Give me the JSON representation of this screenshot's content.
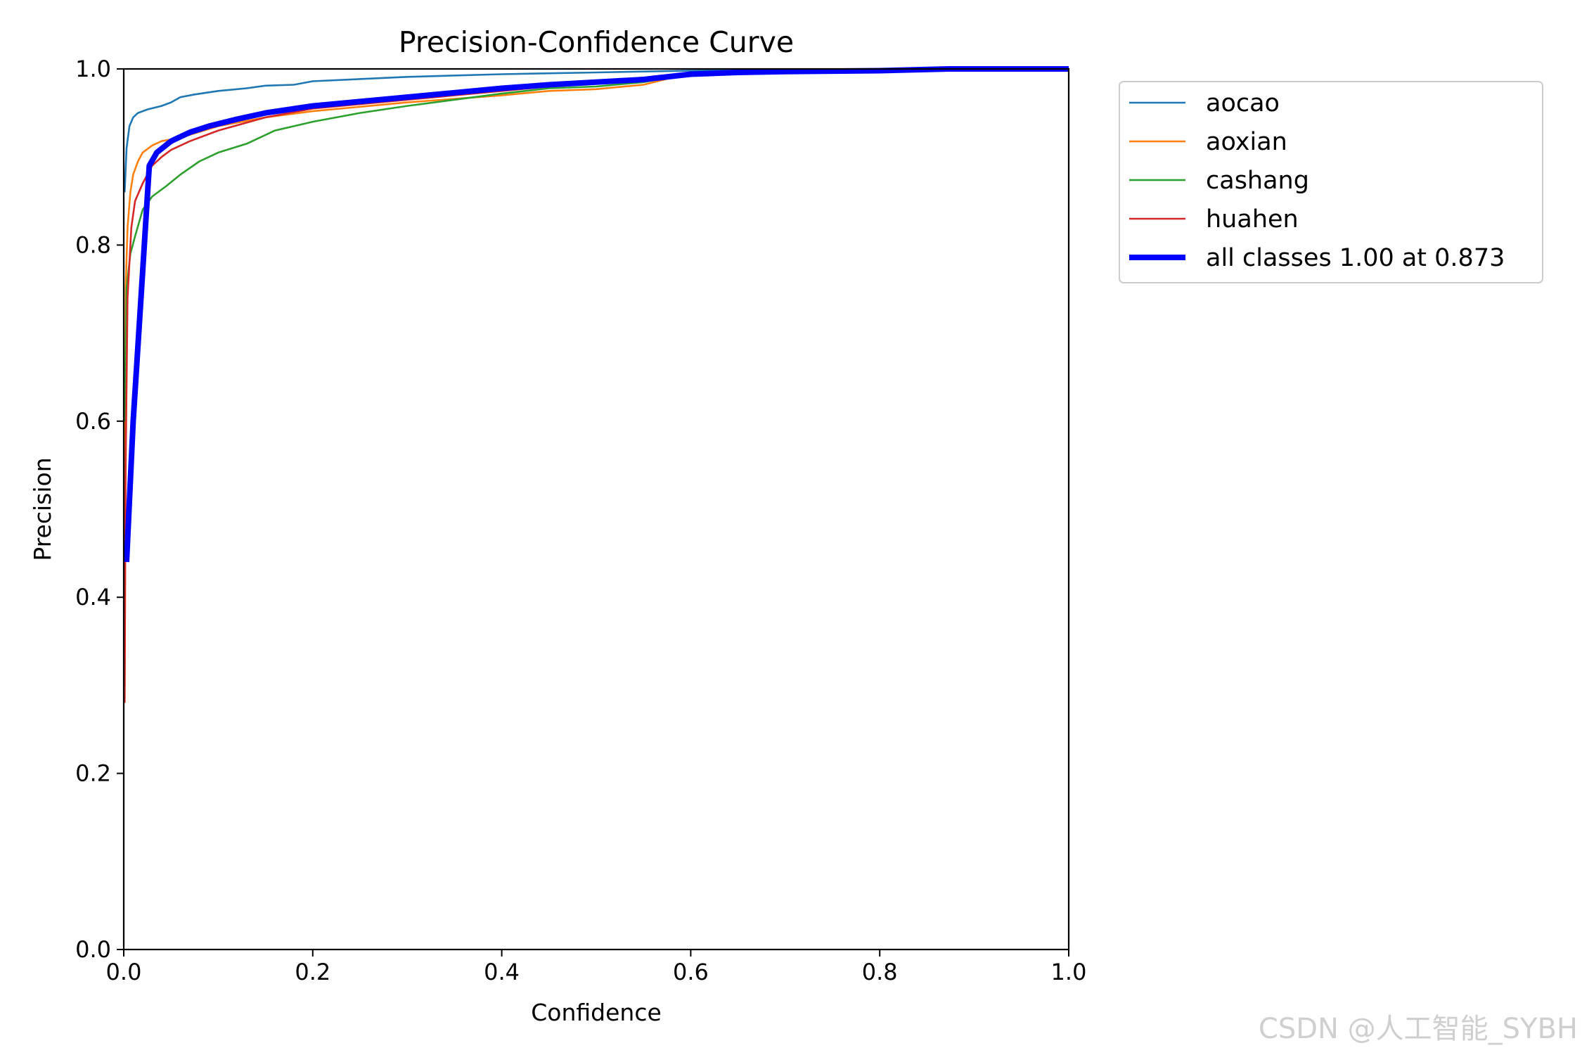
{
  "chart_data": {
    "type": "line",
    "title": "Precision-Confidence Curve",
    "xlabel": "Confidence",
    "ylabel": "Precision",
    "xlim": [
      0,
      1
    ],
    "ylim": [
      0,
      1
    ],
    "xticks": [
      "0.0",
      "0.2",
      "0.4",
      "0.6",
      "0.8",
      "1.0"
    ],
    "yticks": [
      "0.0",
      "0.2",
      "0.4",
      "0.6",
      "0.8",
      "1.0"
    ],
    "grid": false,
    "legend": "outside-top-right",
    "series": [
      {
        "name": "aocao",
        "color": "#1f77b4",
        "points": [
          [
            0.001,
            0.86
          ],
          [
            0.003,
            0.91
          ],
          [
            0.006,
            0.935
          ],
          [
            0.01,
            0.945
          ],
          [
            0.015,
            0.95
          ],
          [
            0.025,
            0.954
          ],
          [
            0.04,
            0.958
          ],
          [
            0.05,
            0.962
          ],
          [
            0.06,
            0.968
          ],
          [
            0.075,
            0.971
          ],
          [
            0.1,
            0.975
          ],
          [
            0.13,
            0.978
          ],
          [
            0.15,
            0.981
          ],
          [
            0.18,
            0.982
          ],
          [
            0.2,
            0.986
          ],
          [
            0.3,
            0.991
          ],
          [
            0.4,
            0.994
          ],
          [
            0.5,
            0.996
          ],
          [
            0.6,
            0.998
          ],
          [
            0.7,
            0.999
          ],
          [
            1.0,
            1.0
          ]
        ]
      },
      {
        "name": "aoxian",
        "color": "#ff7f0e",
        "points": [
          [
            0.001,
            0.3
          ],
          [
            0.002,
            0.75
          ],
          [
            0.004,
            0.82
          ],
          [
            0.007,
            0.86
          ],
          [
            0.01,
            0.88
          ],
          [
            0.015,
            0.895
          ],
          [
            0.02,
            0.905
          ],
          [
            0.03,
            0.913
          ],
          [
            0.04,
            0.918
          ],
          [
            0.06,
            0.922
          ],
          [
            0.1,
            0.935
          ],
          [
            0.15,
            0.945
          ],
          [
            0.2,
            0.952
          ],
          [
            0.3,
            0.962
          ],
          [
            0.4,
            0.97
          ],
          [
            0.45,
            0.975
          ],
          [
            0.5,
            0.977
          ],
          [
            0.55,
            0.982
          ],
          [
            0.58,
            0.99
          ],
          [
            0.59,
            0.991
          ],
          [
            0.6,
            0.996
          ],
          [
            0.7,
            0.998
          ],
          [
            1.0,
            1.0
          ]
        ]
      },
      {
        "name": "cashang",
        "color": "#2ca02c",
        "points": [
          [
            0.001,
            0.6
          ],
          [
            0.003,
            0.75
          ],
          [
            0.007,
            0.79
          ],
          [
            0.012,
            0.81
          ],
          [
            0.02,
            0.84
          ],
          [
            0.03,
            0.855
          ],
          [
            0.045,
            0.867
          ],
          [
            0.06,
            0.88
          ],
          [
            0.08,
            0.895
          ],
          [
            0.1,
            0.905
          ],
          [
            0.13,
            0.915
          ],
          [
            0.16,
            0.93
          ],
          [
            0.2,
            0.94
          ],
          [
            0.25,
            0.95
          ],
          [
            0.3,
            0.958
          ],
          [
            0.35,
            0.965
          ],
          [
            0.4,
            0.972
          ],
          [
            0.45,
            0.978
          ],
          [
            0.5,
            0.98
          ],
          [
            0.55,
            0.985
          ],
          [
            0.6,
            0.995
          ],
          [
            0.7,
            0.998
          ],
          [
            1.0,
            1.0
          ]
        ]
      },
      {
        "name": "huahen",
        "color": "#d62728",
        "points": [
          [
            0.001,
            0.28
          ],
          [
            0.002,
            0.55
          ],
          [
            0.004,
            0.74
          ],
          [
            0.008,
            0.82
          ],
          [
            0.012,
            0.85
          ],
          [
            0.02,
            0.87
          ],
          [
            0.03,
            0.89
          ],
          [
            0.04,
            0.9
          ],
          [
            0.05,
            0.908
          ],
          [
            0.07,
            0.918
          ],
          [
            0.1,
            0.93
          ],
          [
            0.15,
            0.945
          ],
          [
            0.2,
            0.955
          ],
          [
            0.3,
            0.965
          ],
          [
            0.4,
            0.975
          ],
          [
            0.45,
            0.98
          ],
          [
            0.5,
            0.986
          ],
          [
            0.55,
            0.99
          ],
          [
            0.6,
            0.995
          ],
          [
            0.7,
            0.998
          ],
          [
            1.0,
            1.0
          ]
        ]
      },
      {
        "name": "all classes 1.00 at 0.873",
        "color": "#0000ff",
        "points": [
          [
            0.003,
            0.44
          ],
          [
            0.01,
            0.6
          ],
          [
            0.02,
            0.77
          ],
          [
            0.027,
            0.89
          ],
          [
            0.035,
            0.905
          ],
          [
            0.05,
            0.918
          ],
          [
            0.07,
            0.928
          ],
          [
            0.09,
            0.935
          ],
          [
            0.12,
            0.943
          ],
          [
            0.15,
            0.95
          ],
          [
            0.2,
            0.958
          ],
          [
            0.25,
            0.963
          ],
          [
            0.3,
            0.968
          ],
          [
            0.35,
            0.973
          ],
          [
            0.4,
            0.978
          ],
          [
            0.45,
            0.982
          ],
          [
            0.5,
            0.985
          ],
          [
            0.55,
            0.988
          ],
          [
            0.6,
            0.994
          ],
          [
            0.65,
            0.996
          ],
          [
            0.7,
            0.997
          ],
          [
            0.8,
            0.998
          ],
          [
            0.873,
            1.0
          ],
          [
            1.0,
            1.0
          ]
        ]
      }
    ]
  },
  "watermark": "CSDN @人工智能_SYBH"
}
